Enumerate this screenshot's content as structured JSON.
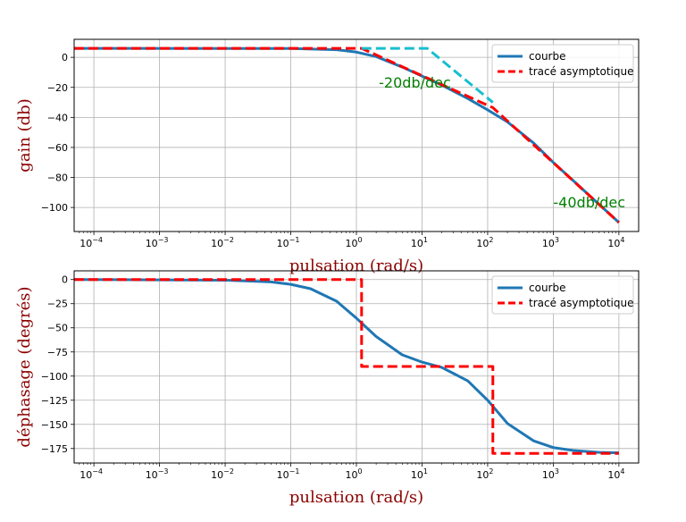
{
  "chart_data": [
    {
      "type": "line",
      "xscale": "log",
      "xlim": [
        5e-05,
        20000
      ],
      "ylim": [
        -116,
        12
      ],
      "xlabel": "pulsation (rad/s)",
      "ylabel": "gain (db)",
      "grid": true,
      "x_ticks": [
        0.0001,
        0.001,
        0.01,
        0.1,
        1,
        10,
        100,
        1000,
        10000
      ],
      "x_tick_labels": [
        "10",
        "10",
        "10",
        "10",
        "10",
        "10",
        "10",
        "10",
        "10"
      ],
      "x_tick_exponents": [
        "−4",
        "−3",
        "−2",
        "−1",
        "0",
        "1",
        "2",
        "3",
        "4"
      ],
      "y_ticks": [
        0,
        -20,
        -40,
        -60,
        -80,
        -100
      ],
      "y_tick_labels": [
        "0",
        "−20",
        "−40",
        "−60",
        "−80",
        "−100"
      ],
      "legend": {
        "location": "top-right",
        "entries": [
          "courbe",
          "tracé asymptotique"
        ]
      },
      "annotations": [
        {
          "text": "-20db/dec",
          "x": 2.2,
          "y": -20
        },
        {
          "text": "-40db/dec",
          "x": 1000,
          "y": -100
        }
      ],
      "series": [
        {
          "name": "courbe",
          "color": "#1f77b4",
          "style": "solid",
          "points": [
            [
              5e-05,
              6
            ],
            [
              0.1,
              5.9
            ],
            [
              0.5,
              5.1
            ],
            [
              1,
              3.5
            ],
            [
              2,
              0.5
            ],
            [
              5,
              -6.5
            ],
            [
              10,
              -12.5
            ],
            [
              20,
              -18.5
            ],
            [
              50,
              -27.5
            ],
            [
              100,
              -35
            ],
            [
              200,
              -43
            ],
            [
              500,
              -57
            ],
            [
              1000,
              -70
            ],
            [
              2000,
              -82
            ],
            [
              5000,
              -98
            ],
            [
              10000,
              -110
            ]
          ]
        },
        {
          "name": "tracé asymptotique",
          "color": "#ff0000",
          "style": "dashed",
          "points": [
            [
              5e-05,
              6
            ],
            [
              1.2,
              6
            ],
            [
              120,
              -33.5
            ],
            [
              10000,
              -110
            ]
          ]
        },
        {
          "color": "#17becf",
          "style": "dashed",
          "points": [
            [
              1.2,
              6
            ],
            [
              12,
              6
            ],
            [
              120,
              -30
            ]
          ]
        }
      ]
    },
    {
      "type": "line",
      "xscale": "log",
      "xlim": [
        5e-05,
        20000
      ],
      "ylim": [
        -190,
        9
      ],
      "xlabel": "pulsation (rad/s)",
      "ylabel": "déphasage (degrés)",
      "grid": true,
      "x_ticks": [
        0.0001,
        0.001,
        0.01,
        0.1,
        1,
        10,
        100,
        1000,
        10000
      ],
      "x_tick_labels": [
        "10",
        "10",
        "10",
        "10",
        "10",
        "10",
        "10",
        "10",
        "10"
      ],
      "x_tick_exponents": [
        "−4",
        "−3",
        "−2",
        "−1",
        "0",
        "1",
        "2",
        "3",
        "4"
      ],
      "y_ticks": [
        0,
        -25,
        -50,
        -75,
        -100,
        -125,
        -150,
        -175
      ],
      "y_tick_labels": [
        "0",
        "−25",
        "−50",
        "−75",
        "−100",
        "−125",
        "−150",
        "−175"
      ],
      "legend": {
        "location": "top-right",
        "entries": [
          "courbe",
          "tracé asymptotique"
        ]
      },
      "series": [
        {
          "name": "courbe",
          "color": "#1f77b4",
          "style": "solid",
          "points": [
            [
              5e-05,
              0
            ],
            [
              0.01,
              -0.7
            ],
            [
              0.05,
              -2.5
            ],
            [
              0.1,
              -5
            ],
            [
              0.2,
              -9.5
            ],
            [
              0.5,
              -22.5
            ],
            [
              1,
              -40
            ],
            [
              2,
              -59
            ],
            [
              5,
              -78
            ],
            [
              10,
              -85.5
            ],
            [
              20,
              -91
            ],
            [
              50,
              -105
            ],
            [
              100,
              -125
            ],
            [
              200,
              -149
            ],
            [
              500,
              -167
            ],
            [
              1000,
              -174
            ],
            [
              2000,
              -177
            ],
            [
              5000,
              -179
            ],
            [
              10000,
              -179.5
            ]
          ]
        },
        {
          "name": "tracé asymptotique",
          "color": "#ff0000",
          "style": "dashed",
          "points": [
            [
              5e-05,
              0
            ],
            [
              1.2,
              0
            ],
            [
              1.2,
              -90
            ],
            [
              120,
              -90
            ],
            [
              120,
              -180
            ],
            [
              10000,
              -180
            ]
          ]
        }
      ]
    }
  ]
}
